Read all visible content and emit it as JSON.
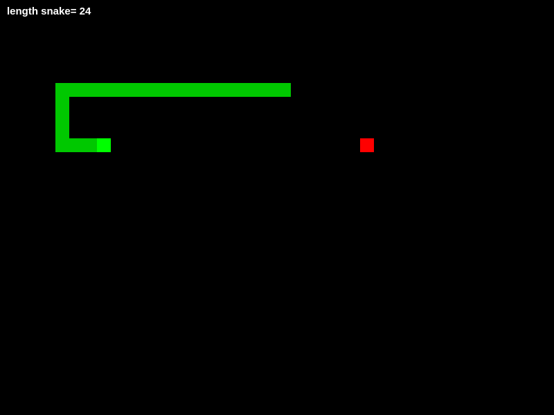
{
  "hud": {
    "length_text": "length snake= 24"
  },
  "game": {
    "grid": {
      "columns": 40,
      "rows": 30
    },
    "colors": {
      "background": "#000000",
      "snake_body": "#00c800",
      "snake_head": "#00ff00",
      "food": "#ff0000",
      "text": "#ffffff"
    },
    "snake": {
      "head": [
        7,
        10
      ],
      "body": [
        [
          6,
          10
        ],
        [
          5,
          10
        ],
        [
          4,
          10
        ],
        [
          4,
          9
        ],
        [
          4,
          8
        ],
        [
          4,
          7
        ],
        [
          4,
          6
        ],
        [
          5,
          6
        ],
        [
          6,
          6
        ],
        [
          7,
          6
        ],
        [
          8,
          6
        ],
        [
          9,
          6
        ],
        [
          10,
          6
        ],
        [
          11,
          6
        ],
        [
          12,
          6
        ],
        [
          13,
          6
        ],
        [
          14,
          6
        ],
        [
          15,
          6
        ],
        [
          16,
          6
        ],
        [
          17,
          6
        ],
        [
          18,
          6
        ],
        [
          19,
          6
        ],
        [
          20,
          6
        ]
      ]
    },
    "food": [
      26,
      10
    ]
  }
}
